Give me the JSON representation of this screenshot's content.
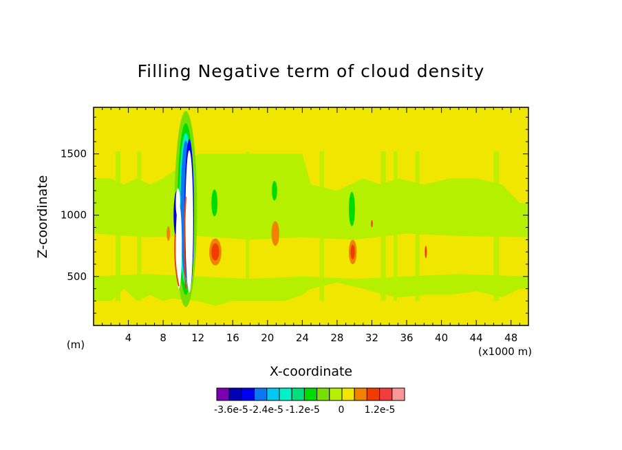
{
  "chart_data": {
    "type": "heatmap",
    "title": "Filling Negative term of cloud density",
    "xlabel": "X-coordinate",
    "ylabel": "Z-coordinate",
    "x_unit_note": "(x1000 m)",
    "y_unit_note": "(m)",
    "xlim": [
      0,
      50
    ],
    "ylim": [
      100,
      1880
    ],
    "x_ticks": [
      4,
      8,
      12,
      16,
      20,
      24,
      28,
      32,
      36,
      40,
      44,
      48
    ],
    "x_tick_labels": [
      "4",
      "8",
      "12",
      "16",
      "20",
      "24",
      "28",
      "32",
      "36",
      "40",
      "44",
      "48"
    ],
    "y_ticks": [
      500,
      1000,
      1500
    ],
    "y_tick_labels": [
      "500",
      "1000",
      "1500"
    ],
    "background_level": "0 (yellow)",
    "features": [
      {
        "name": "light-green band",
        "x_range": [
          0,
          50
        ],
        "y_range": [
          300,
          1300
        ],
        "level": "-3e-6"
      },
      {
        "name": "strong negative core",
        "x_center": 10.5,
        "y_center": 1000,
        "level": "< -3.6e-5"
      },
      {
        "name": "positive patch",
        "x_center": 14,
        "y_center": 700,
        "level": "1.2e-5"
      },
      {
        "name": "positive patch",
        "x_center": 29.8,
        "y_center": 700,
        "level": "1.2e-5"
      },
      {
        "name": "positive patch",
        "x_center": 20.9,
        "y_center": 850,
        "level": "6e-6"
      },
      {
        "name": "negative patch",
        "x_center": 13.9,
        "y_center": 1100,
        "level": "-9e-6"
      },
      {
        "name": "negative patch",
        "x_center": 29.7,
        "y_center": 1050,
        "level": "-9e-6"
      },
      {
        "name": "negative patch",
        "x_center": 20.8,
        "y_center": 1200,
        "level": "-9e-6"
      }
    ],
    "colorbar": {
      "colors": [
        "#7a00b4",
        "#0000b4",
        "#0000f0",
        "#0a78f0",
        "#00c8f0",
        "#00f0c8",
        "#00e07a",
        "#00dc00",
        "#78e000",
        "#b4f000",
        "#f0e600",
        "#f08200",
        "#f03c00",
        "#f03c3c",
        "#fa9696"
      ],
      "tick_labels": [
        "-3.6e-5",
        "-2.4e-5",
        "-1.2e-5",
        "0",
        "1.2e-5"
      ]
    }
  }
}
